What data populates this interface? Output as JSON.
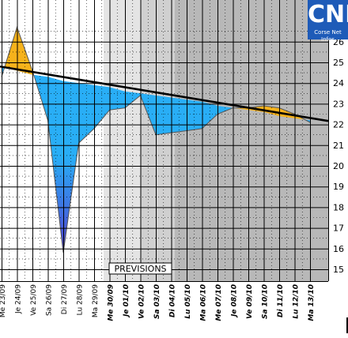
{
  "logo": {
    "title": "CNI",
    "subtitle": "Corse Net Infos"
  },
  "chart_data": {
    "type": "area",
    "annotation": "PREVISIONS",
    "categories": [
      "Me 23/09",
      "Je 24/09",
      "Ve 25/09",
      "Sa 26/09",
      "Di 27/09",
      "Lu 28/09",
      "Ma 29/09",
      "Me 30/09",
      "Je 01/10",
      "Ve 02/10",
      "Sa 03/10",
      "Di 04/10",
      "Lu 05/10",
      "Ma 06/10",
      "Me 07/10",
      "Je 08/10",
      "Ve 09/10",
      "Sa 10/10",
      "Di 11/10",
      "Lu 12/10",
      "Ma 13/10"
    ],
    "ylim": [
      14.5,
      26.5
    ],
    "yticks": [
      15,
      16,
      17,
      18,
      19,
      20,
      21,
      22,
      23,
      24,
      25,
      26
    ],
    "series": [
      {
        "values": [
          24.3,
          26.7,
          24.6,
          22.2,
          15.8,
          21.1,
          21.8,
          22.7,
          22.8,
          23.4,
          21.5,
          21.6,
          21.7,
          21.8,
          22.5,
          22.8,
          22.8,
          22.9,
          22.8,
          22.5,
          22.1
        ]
      },
      {
        "values": [
          24.8,
          24.6,
          24.4,
          24.3,
          24.1,
          24.0,
          23.9,
          23.8,
          23.6,
          23.5,
          23.4,
          23.3,
          23.2,
          23.1,
          22.9,
          22.8,
          22.7,
          22.6,
          22.4,
          22.3,
          22.2
        ]
      }
    ],
    "colors": {
      "above": "#f6b21b",
      "below": "#29aef6",
      "low": "#5b22c6",
      "trend": "#000000"
    }
  }
}
